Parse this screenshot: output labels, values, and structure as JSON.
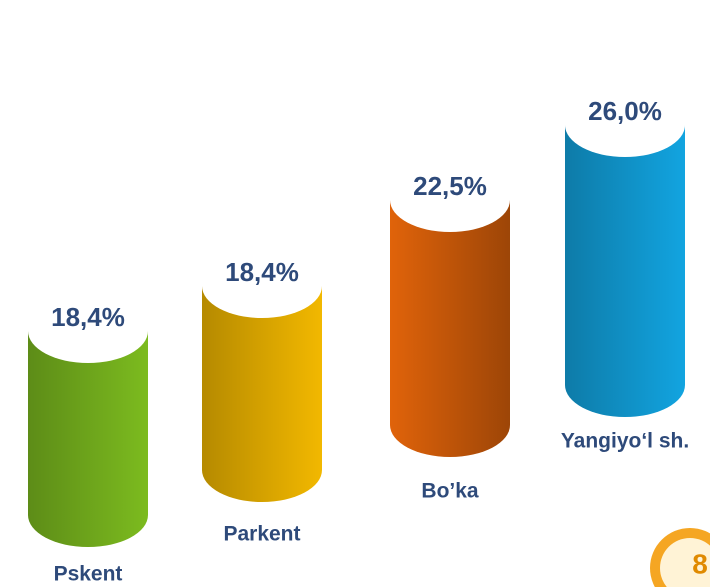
{
  "chart_data": {
    "type": "cylinder",
    "categories": [
      "Pskent",
      "Parkent",
      "Bo’ka",
      "Yangiyo‘l sh."
    ],
    "values": [
      18.4,
      18.4,
      22.5,
      26.0
    ],
    "value_labels": [
      "18,4%",
      "18,4%",
      "22,5%",
      "26,0%"
    ],
    "colors": [
      "#7cbb1f",
      "#f2b800",
      "#e0630a",
      "#12a4e0"
    ],
    "annotations": [
      "8"
    ]
  }
}
